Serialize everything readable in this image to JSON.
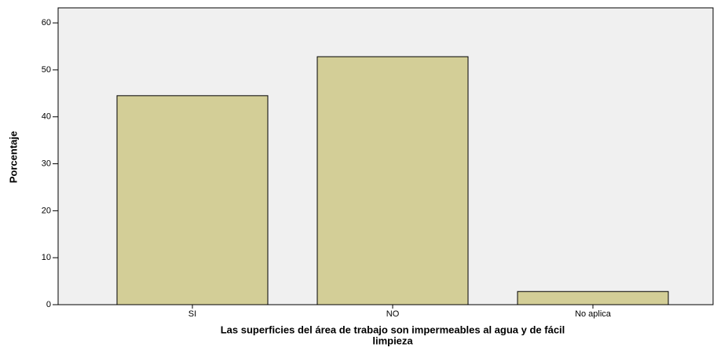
{
  "chart_data": {
    "type": "bar",
    "y_label": "Porcentaje",
    "x_label": [
      "Las superficies del área de trabajo son impermeables al agua y de fácil",
      "limpieza"
    ],
    "categories": [
      "SI",
      "NO",
      "No aplica"
    ],
    "values": [
      44.5,
      52.8,
      2.8
    ],
    "color": "#d3ce97",
    "ylim": [
      0,
      63.2
    ],
    "yticks": [
      0,
      10,
      20,
      30,
      40,
      50,
      60
    ],
    "grid": false
  }
}
